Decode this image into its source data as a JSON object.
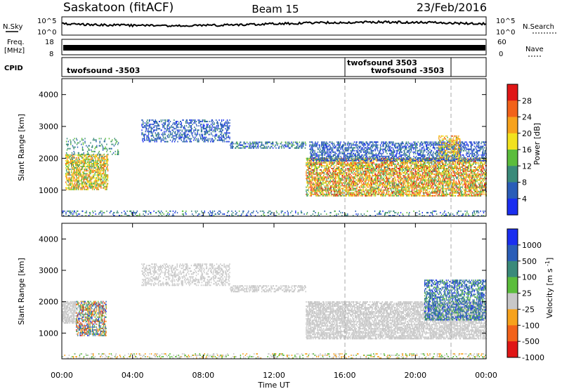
{
  "header": {
    "station": "Saskatoon (fitACF)",
    "beam": "Beam 15",
    "date": "23/Feb/2016"
  },
  "aux_panels": {
    "nsky": {
      "label": "N.Sky",
      "tick_top": "10^5",
      "tick_bottom": "10^0"
    },
    "nsearch": {
      "label": "N.Search",
      "tick_top": "10^5",
      "tick_bottom": "10^0"
    },
    "freq": {
      "label_line1": "Freq.",
      "label_line2": "[MHz]",
      "tick_top": "18",
      "tick_bottom": "8"
    },
    "nave": {
      "label": "Nave",
      "tick_top": "60",
      "tick_bottom": "0"
    },
    "cpid": {
      "label": "CPID",
      "segments": [
        {
          "text": "twofsound -3503"
        },
        {
          "text": "twofsound 3503"
        },
        {
          "text": "twofsound -3503"
        }
      ]
    }
  },
  "chart_data": [
    {
      "type": "heatmap",
      "name_of_panel": "power",
      "ylabel": "Slant Range [km]",
      "yticks": [
        "1000",
        "2000",
        "3000",
        "4000"
      ],
      "ylim": [
        180,
        4500
      ],
      "colorbar_label": "Power [dB]",
      "colorbar_ticks": [
        "4",
        "8",
        "12",
        "16",
        "20",
        "24",
        "28"
      ],
      "colors": [
        "#1a2ef0",
        "#2a5db8",
        "#3a8a7a",
        "#5bbd3c",
        "#f2e21e",
        "#f7a21c",
        "#f2621a",
        "#e01616"
      ],
      "vertical_markers_hours": [
        16.0,
        22.0
      ],
      "regions": [
        {
          "t": [
            0.2,
            2.6
          ],
          "r": [
            1000,
            2100
          ],
          "level": [
            2,
            6
          ],
          "density": 0.55
        },
        {
          "t": [
            0.2,
            3.2
          ],
          "r": [
            2100,
            2600
          ],
          "level": [
            1,
            3
          ],
          "density": 0.15
        },
        {
          "t": [
            4.5,
            9.5
          ],
          "r": [
            2500,
            3200
          ],
          "level": [
            0,
            2
          ],
          "density": 0.3
        },
        {
          "t": [
            9.5,
            13.8
          ],
          "r": [
            2300,
            2500
          ],
          "level": [
            0,
            3
          ],
          "density": 0.4
        },
        {
          "t": [
            13.8,
            24.0
          ],
          "r": [
            800,
            2000
          ],
          "level": [
            2,
            7
          ],
          "density": 0.55
        },
        {
          "t": [
            14.0,
            24.0
          ],
          "r": [
            1900,
            2500
          ],
          "level": [
            0,
            2
          ],
          "density": 0.4
        },
        {
          "t": [
            21.3,
            22.5
          ],
          "r": [
            2000,
            2700
          ],
          "level": [
            3,
            6
          ],
          "density": 0.35
        },
        {
          "t": [
            0.0,
            24.0
          ],
          "r": [
            180,
            320
          ],
          "level": [
            0,
            3
          ],
          "density": 0.15
        }
      ]
    },
    {
      "type": "heatmap",
      "name_of_panel": "velocity",
      "ylabel": "Slant Range [km]",
      "yticks": [
        "1000",
        "2000",
        "3000",
        "4000"
      ],
      "ylim": [
        180,
        4500
      ],
      "xlabel": "Time UT",
      "xticks": [
        "00:00",
        "04:00",
        "08:00",
        "12:00",
        "16:00",
        "20:00",
        "00:00"
      ],
      "xlim_hours": [
        0,
        24
      ],
      "colorbar_label": "Velocity [m s-1]",
      "colorbar_ticks": [
        "1000",
        "500",
        "100",
        "25",
        "-25",
        "-100",
        "-500",
        "-1000"
      ],
      "colors": [
        "#1a2ef0",
        "#2a5db8",
        "#3a8a7a",
        "#5bbd3c",
        "#c8c8c8",
        "#f7a21c",
        "#f2621a",
        "#e01616"
      ],
      "vertical_markers_hours": [
        16.0,
        22.0
      ],
      "regions": [
        {
          "t": [
            0.0,
            0.8
          ],
          "r": [
            1300,
            2000
          ],
          "level": [
            4,
            4
          ],
          "density": 0.6
        },
        {
          "t": [
            0.8,
            2.5
          ],
          "r": [
            900,
            2000
          ],
          "level": [
            0,
            7
          ],
          "density": 0.5
        },
        {
          "t": [
            4.5,
            9.5
          ],
          "r": [
            2500,
            3200
          ],
          "level": [
            4,
            4
          ],
          "density": 0.3
        },
        {
          "t": [
            9.5,
            13.8
          ],
          "r": [
            2300,
            2500
          ],
          "level": [
            4,
            4
          ],
          "density": 0.4
        },
        {
          "t": [
            13.8,
            24.0
          ],
          "r": [
            800,
            2000
          ],
          "level": [
            4,
            4
          ],
          "density": 0.55
        },
        {
          "t": [
            20.5,
            24.0
          ],
          "r": [
            1400,
            2700
          ],
          "level": [
            0,
            3
          ],
          "density": 0.45
        },
        {
          "t": [
            0.0,
            24.0
          ],
          "r": [
            180,
            320
          ],
          "level": [
            3,
            5
          ],
          "density": 0.2
        }
      ]
    }
  ]
}
